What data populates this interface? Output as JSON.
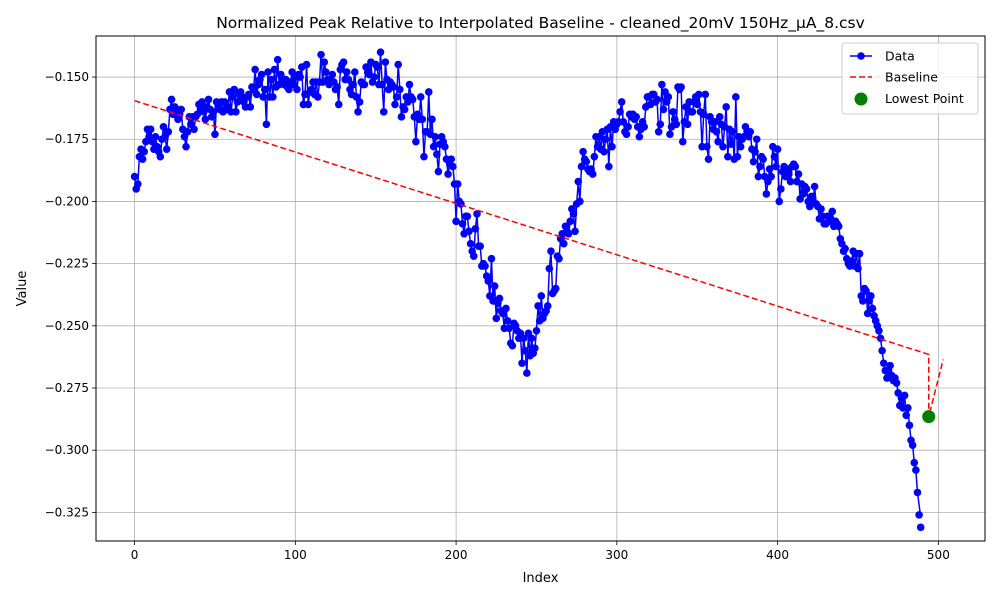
{
  "chart_data": {
    "type": "line",
    "title": "Normalized Peak Relative to Interpolated Baseline - cleaned_20mV 150Hz_µA_8.csv",
    "xlabel": "Index",
    "ylabel": "Value",
    "xlim": [
      -24,
      529
    ],
    "ylim": [
      -0.3365,
      -0.1335
    ],
    "xticks": [
      0,
      100,
      200,
      300,
      400,
      500
    ],
    "xtick_labels": [
      "0",
      "100",
      "200",
      "300",
      "400",
      "500"
    ],
    "yticks": [
      -0.325,
      -0.3,
      -0.275,
      -0.25,
      -0.225,
      -0.2,
      -0.175,
      -0.15
    ],
    "ytick_labels": [
      "−0.325",
      "−0.300",
      "−0.275",
      "−0.250",
      "−0.225",
      "−0.200",
      "−0.175",
      "−0.150"
    ],
    "grid": true,
    "legend_position": "top-right",
    "colors": {
      "data": "#0000ff",
      "baseline": "#ff0000",
      "lowest": "#008000"
    },
    "series": [
      {
        "name": "Data",
        "style": "line-with-markers",
        "x_start": 0,
        "x_step": 1,
        "y": [
          -0.19,
          -0.195,
          -0.193,
          -0.182,
          -0.179,
          -0.183,
          -0.18,
          -0.176,
          -0.171,
          -0.174,
          -0.171,
          -0.176,
          -0.179,
          -0.174,
          -0.178,
          -0.18,
          -0.182,
          -0.175,
          -0.17,
          -0.174,
          -0.179,
          -0.172,
          -0.163,
          -0.159,
          -0.165,
          -0.162,
          -0.163,
          -0.167,
          -0.165,
          -0.163,
          -0.171,
          -0.174,
          -0.178,
          -0.172,
          -0.166,
          -0.169,
          -0.166,
          -0.171,
          -0.166,
          -0.165,
          -0.161,
          -0.163,
          -0.16,
          -0.164,
          -0.167,
          -0.162,
          -0.159,
          -0.163,
          -0.166,
          -0.164,
          -0.173,
          -0.16,
          -0.162,
          -0.163,
          -0.16,
          -0.164,
          -0.16,
          -0.163,
          -0.162,
          -0.156,
          -0.164,
          -0.158,
          -0.155,
          -0.164,
          -0.16,
          -0.157,
          -0.156,
          -0.158,
          -0.16,
          -0.162,
          -0.158,
          -0.157,
          -0.162,
          -0.154,
          -0.155,
          -0.147,
          -0.157,
          -0.153,
          -0.151,
          -0.149,
          -0.158,
          -0.155,
          -0.169,
          -0.148,
          -0.158,
          -0.151,
          -0.158,
          -0.147,
          -0.154,
          -0.143,
          -0.153,
          -0.149,
          -0.152,
          -0.153,
          -0.151,
          -0.154,
          -0.155,
          -0.152,
          -0.148,
          -0.153,
          -0.15,
          -0.155,
          -0.149,
          -0.15,
          -0.146,
          -0.161,
          -0.157,
          -0.145,
          -0.161,
          -0.156,
          -0.155,
          -0.152,
          -0.157,
          -0.152,
          -0.158,
          -0.152,
          -0.141,
          -0.152,
          -0.144,
          -0.148,
          -0.151,
          -0.153,
          -0.152,
          -0.149,
          -0.152,
          -0.155,
          -0.154,
          -0.161,
          -0.147,
          -0.145,
          -0.144,
          -0.151,
          -0.148,
          -0.151,
          -0.155,
          -0.157,
          -0.153,
          -0.148,
          -0.158,
          -0.164,
          -0.16,
          -0.152,
          -0.153,
          -0.153,
          -0.146,
          -0.148,
          -0.149,
          -0.144,
          -0.152,
          -0.15,
          -0.145,
          -0.146,
          -0.153,
          -0.14,
          -0.153,
          -0.164,
          -0.144,
          -0.151,
          -0.155,
          -0.152,
          -0.153,
          -0.154,
          -0.161,
          -0.158,
          -0.145,
          -0.155,
          -0.166,
          -0.162,
          -0.163,
          -0.158,
          -0.16,
          -0.153,
          -0.158,
          -0.159,
          -0.166,
          -0.176,
          -0.165,
          -0.167,
          -0.158,
          -0.167,
          -0.182,
          -0.172,
          -0.172,
          -0.156,
          -0.173,
          -0.167,
          -0.178,
          -0.174,
          -0.181,
          -0.188,
          -0.177,
          -0.174,
          -0.176,
          -0.178,
          -0.183,
          -0.189,
          -0.185,
          -0.183,
          -0.186,
          -0.193,
          -0.208,
          -0.193,
          -0.2,
          -0.201,
          -0.209,
          -0.213,
          -0.206,
          -0.206,
          -0.212,
          -0.217,
          -0.22,
          -0.222,
          -0.211,
          -0.205,
          -0.218,
          -0.218,
          -0.226,
          -0.225,
          -0.226,
          -0.23,
          -0.232,
          -0.238,
          -0.223,
          -0.24,
          -0.234,
          -0.247,
          -0.241,
          -0.239,
          -0.244,
          -0.245,
          -0.251,
          -0.243,
          -0.248,
          -0.251,
          -0.257,
          -0.258,
          -0.249,
          -0.25,
          -0.252,
          -0.255,
          -0.253,
          -0.265,
          -0.255,
          -0.26,
          -0.269,
          -0.253,
          -0.262,
          -0.255,
          -0.261,
          -0.259,
          -0.252,
          -0.242,
          -0.248,
          -0.238,
          -0.247,
          -0.245,
          -0.244,
          -0.242,
          -0.227,
          -0.22,
          -0.237,
          -0.236,
          -0.235,
          -0.222,
          -0.223,
          -0.215,
          -0.213,
          -0.217,
          -0.21,
          -0.212,
          -0.213,
          -0.208,
          -0.203,
          -0.205,
          -0.212,
          -0.201,
          -0.192,
          -0.2,
          -0.186,
          -0.18,
          -0.183,
          -0.184,
          -0.187,
          -0.188,
          -0.187,
          -0.189,
          -0.182,
          -0.174,
          -0.178,
          -0.174,
          -0.179,
          -0.172,
          -0.18,
          -0.175,
          -0.171,
          -0.186,
          -0.17,
          -0.178,
          -0.168,
          -0.171,
          -0.169,
          -0.168,
          -0.164,
          -0.16,
          -0.168,
          -0.172,
          -0.173,
          -0.17,
          -0.165,
          -0.166,
          -0.165,
          -0.167,
          -0.166,
          -0.17,
          -0.174,
          -0.171,
          -0.168,
          -0.17,
          -0.162,
          -0.158,
          -0.158,
          -0.161,
          -0.157,
          -0.157,
          -0.16,
          -0.159,
          -0.172,
          -0.169,
          -0.153,
          -0.163,
          -0.156,
          -0.16,
          -0.158,
          -0.173,
          -0.17,
          -0.164,
          -0.167,
          -0.169,
          -0.154,
          -0.155,
          -0.154,
          -0.176,
          -0.168,
          -0.162,
          -0.169,
          -0.16,
          -0.164,
          -0.164,
          -0.16,
          -0.158,
          -0.161,
          -0.157,
          -0.164,
          -0.178,
          -0.165,
          -0.157,
          -0.178,
          -0.183,
          -0.166,
          -0.168,
          -0.171,
          -0.168,
          -0.172,
          -0.176,
          -0.166,
          -0.169,
          -0.178,
          -0.17,
          -0.162,
          -0.182,
          -0.171,
          -0.177,
          -0.172,
          -0.183,
          -0.158,
          -0.182,
          -0.174,
          -0.178,
          -0.175,
          -0.174,
          -0.17,
          -0.172,
          -0.174,
          -0.172,
          -0.179,
          -0.184,
          -0.18,
          -0.175,
          -0.19,
          -0.186,
          -0.182,
          -0.183,
          -0.19,
          -0.197,
          -0.192,
          -0.187,
          -0.19,
          -0.178,
          -0.182,
          -0.186,
          -0.179,
          -0.2,
          -0.195,
          -0.188,
          -0.186,
          -0.19,
          -0.187,
          -0.189,
          -0.192,
          -0.186,
          -0.185,
          -0.186,
          -0.192,
          -0.189,
          -0.199,
          -0.193,
          -0.197,
          -0.194,
          -0.195,
          -0.2,
          -0.202,
          -0.198,
          -0.2,
          -0.194,
          -0.201,
          -0.202,
          -0.207,
          -0.203,
          -0.206,
          -0.209,
          -0.209,
          -0.206,
          -0.208,
          -0.207,
          -0.204,
          -0.21,
          -0.208,
          -0.209,
          -0.21,
          -0.215,
          -0.217,
          -0.22,
          -0.219,
          -0.223,
          -0.225,
          -0.226,
          -0.224,
          -0.22,
          -0.226,
          -0.221,
          -0.227,
          -0.221,
          -0.238,
          -0.24,
          -0.235,
          -0.236,
          -0.245,
          -0.24,
          -0.238,
          -0.243,
          -0.246,
          -0.248,
          -0.25,
          -0.252,
          -0.255,
          -0.26,
          -0.265,
          -0.268,
          -0.271,
          -0.268,
          -0.266,
          -0.27,
          -0.272,
          -0.271,
          -0.273,
          -0.277,
          -0.282,
          -0.279,
          -0.283,
          -0.278,
          -0.286,
          -0.283,
          -0.29,
          -0.296,
          -0.298,
          -0.305,
          -0.308,
          -0.317,
          -0.322,
          -0.327
        ],
        "marker_y_shift": {
          "from_index": 488,
          "to_index": 494,
          "shift": -0.004
        }
      },
      {
        "name": "Baseline",
        "style": "dashed",
        "x": [
          0,
          494,
          494,
          503
        ],
        "y": [
          -0.1595,
          -0.2615,
          -0.2865,
          -0.2635
        ]
      },
      {
        "name": "Lowest Point",
        "style": "marker",
        "x": [
          494
        ],
        "y": [
          -0.2865
        ]
      }
    ]
  }
}
